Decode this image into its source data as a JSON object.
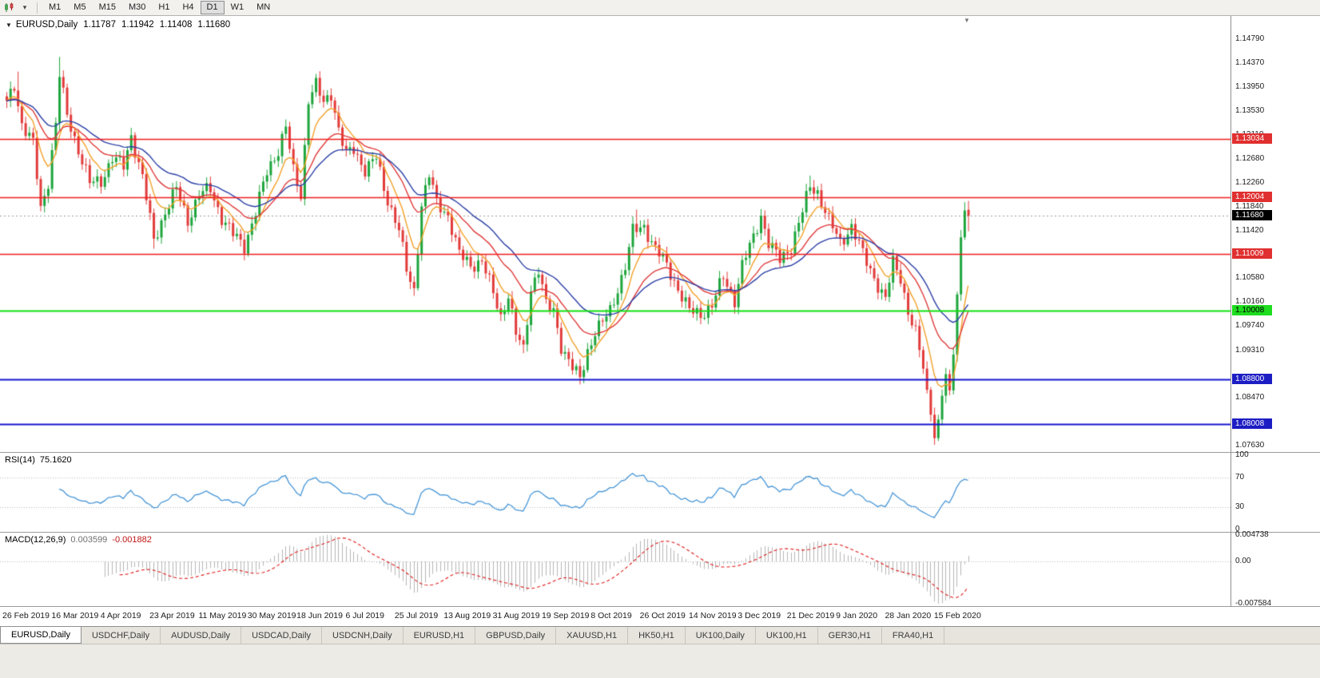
{
  "toolbar": {
    "timeframes": [
      "M1",
      "M5",
      "M15",
      "M30",
      "H1",
      "H4",
      "D1",
      "W1",
      "MN"
    ],
    "active_timeframe": "D1"
  },
  "chart_header": {
    "symbol": "EURUSD,Daily",
    "open": "1.11787",
    "high": "1.11942",
    "low": "1.11408",
    "close": "1.11680"
  },
  "price_scale": {
    "ticks": [
      "1.14790",
      "1.14370",
      "1.13950",
      "1.13530",
      "1.13110",
      "1.12680",
      "1.12260",
      "1.11840",
      "1.11420",
      "1.10580",
      "1.10160",
      "1.09740",
      "1.09310",
      "1.08470",
      "1.07630"
    ],
    "current_price": {
      "label": "1.11680",
      "value": 1.1168,
      "bg": "#000000",
      "fg": "#ffffff"
    },
    "levels": [
      {
        "label": "1.13034",
        "value": 1.13034,
        "line": "#f01d1d",
        "width": 1.6,
        "bg": "#e03030",
        "fg": "#ffffff"
      },
      {
        "label": "1.12004",
        "value": 1.12004,
        "line": "#f01d1d",
        "width": 1.6,
        "bg": "#e03030",
        "fg": "#ffffff"
      },
      {
        "label": "1.11009",
        "value": 1.11009,
        "line": "#f01d1d",
        "width": 1.6,
        "bg": "#e03030",
        "fg": "#ffffff"
      },
      {
        "label": "1.10008",
        "value": 1.10008,
        "line": "#10e010",
        "width": 2,
        "bg": "#1edc1e",
        "fg": "#000000"
      },
      {
        "label": "1.08800",
        "value": 1.088,
        "line": "#1414cf",
        "width": 2,
        "bg": "#1d1dc4",
        "fg": "#ffffff"
      },
      {
        "label": "1.08008",
        "value": 1.08008,
        "line": "#1414cf",
        "width": 2,
        "bg": "#1d1dc4",
        "fg": "#ffffff"
      }
    ]
  },
  "time_axis": {
    "labels": [
      "26 Feb 2019",
      "16 Mar 2019",
      "4 Apr 2019",
      "23 Apr 2019",
      "11 May 2019",
      "30 May 2019",
      "18 Jun 2019",
      "6 Jul 2019",
      "25 Jul 2019",
      "13 Aug 2019",
      "31 Aug 2019",
      "19 Sep 2019",
      "8 Oct 2019",
      "26 Oct 2019",
      "14 Nov 2019",
      "3 Dec 2019",
      "21 Dec 2019",
      "9 Jan 2020",
      "28 Jan 2020",
      "15 Feb 2020"
    ],
    "candles_per_label": 13
  },
  "rsi_panel": {
    "title": "RSI(14)",
    "value": "75.1620",
    "period": 14,
    "scale": [
      {
        "v": 100,
        "label": "100"
      },
      {
        "v": 70,
        "label": "70"
      },
      {
        "v": 30,
        "label": "30"
      },
      {
        "v": 0,
        "label": "0"
      }
    ],
    "guide_levels": [
      70,
      30
    ],
    "line_color": "#4695d6"
  },
  "macd_panel": {
    "title": "MACD(12,26,9)",
    "value": "0.003599",
    "signal_value": "-0.001882",
    "fast": 12,
    "slow": 26,
    "signal": 9,
    "scale": [
      {
        "v": 0.004738,
        "label": "0.004738"
      },
      {
        "v": 0,
        "label": "0.00"
      },
      {
        "v": -0.007584,
        "label": "-0.007584"
      }
    ],
    "hist_color": "#b5b5b5",
    "signal_color": "#e01818"
  },
  "tabs": [
    {
      "label": "EURUSD,Daily",
      "active": true
    },
    {
      "label": "USDCHF,Daily",
      "active": false
    },
    {
      "label": "AUDUSD,Daily",
      "active": false
    },
    {
      "label": "USDCAD,Daily",
      "active": false
    },
    {
      "label": "USDCNH,Daily",
      "active": false
    },
    {
      "label": "EURUSD,H1",
      "active": false
    },
    {
      "label": "GBPUSD,Daily",
      "active": false
    },
    {
      "label": "XAUUSD,H1",
      "active": false
    },
    {
      "label": "HK50,H1",
      "active": false
    },
    {
      "label": "UK100,Daily",
      "active": false
    },
    {
      "label": "UK100,H1",
      "active": false
    },
    {
      "label": "GER30,H1",
      "active": false
    },
    {
      "label": "FRA40,H1",
      "active": false
    }
  ],
  "chart_data": {
    "type": "candlestick",
    "symbol": "EURUSD",
    "timeframe": "Daily",
    "candle_count": 256,
    "y_range": [
      1.0752,
      1.152
    ],
    "x_first": 8,
    "x_step": 4.72,
    "up_color": "#1da53c",
    "down_color": "#e23a3a",
    "ma_lines": [
      {
        "period": 8,
        "color": "#f2a028"
      },
      {
        "period": 20,
        "color": "#e03a3a"
      },
      {
        "period": 34,
        "color": "#2b3fa6"
      }
    ],
    "close_anchors": [
      [
        0,
        1.1365
      ],
      [
        2,
        1.14
      ],
      [
        4,
        1.133
      ],
      [
        7,
        1.1295
      ],
      [
        9,
        1.118
      ],
      [
        11,
        1.123
      ],
      [
        13,
        1.133
      ],
      [
        14,
        1.1415
      ],
      [
        16,
        1.1345
      ],
      [
        19,
        1.1285
      ],
      [
        22,
        1.1225
      ],
      [
        25,
        1.123
      ],
      [
        28,
        1.127
      ],
      [
        31,
        1.1255
      ],
      [
        33,
        1.131
      ],
      [
        36,
        1.1235
      ],
      [
        39,
        1.1125
      ],
      [
        42,
        1.1175
      ],
      [
        45,
        1.1215
      ],
      [
        48,
        1.116
      ],
      [
        51,
        1.1205
      ],
      [
        54,
        1.1215
      ],
      [
        57,
        1.1165
      ],
      [
        60,
        1.1135
      ],
      [
        63,
        1.1115
      ],
      [
        66,
        1.1175
      ],
      [
        69,
        1.1245
      ],
      [
        72,
        1.1285
      ],
      [
        74,
        1.1325
      ],
      [
        76,
        1.1245
      ],
      [
        78,
        1.1205
      ],
      [
        80,
        1.1375
      ],
      [
        82,
        1.1398
      ],
      [
        84,
        1.1365
      ],
      [
        86,
        1.1385
      ],
      [
        88,
        1.132
      ],
      [
        90,
        1.1275
      ],
      [
        92,
        1.1285
      ],
      [
        95,
        1.125
      ],
      [
        98,
        1.127
      ],
      [
        100,
        1.1215
      ],
      [
        102,
        1.118
      ],
      [
        104,
        1.1145
      ],
      [
        106,
        1.107
      ],
      [
        108,
        1.1035
      ],
      [
        110,
        1.119
      ],
      [
        112,
        1.124
      ],
      [
        114,
        1.119
      ],
      [
        117,
        1.117
      ],
      [
        120,
        1.11
      ],
      [
        123,
        1.108
      ],
      [
        126,
        1.109
      ],
      [
        128,
        1.105
      ],
      [
        131,
        1.099
      ],
      [
        133,
        1.103
      ],
      [
        135,
        1.096
      ],
      [
        137,
        1.093
      ],
      [
        139,
        1.104
      ],
      [
        141,
        1.1075
      ],
      [
        143,
        1.101
      ],
      [
        145,
        1.1
      ],
      [
        147,
        1.094
      ],
      [
        150,
        1.09
      ],
      [
        152,
        1.088
      ],
      [
        154,
        1.093
      ],
      [
        156,
        1.0965
      ],
      [
        158,
        1.098
      ],
      [
        160,
        1.1
      ],
      [
        162,
        1.104
      ],
      [
        164,
        1.108
      ],
      [
        166,
        1.114
      ],
      [
        169,
        1.115
      ],
      [
        172,
        1.111
      ],
      [
        175,
        1.108
      ],
      [
        178,
        1.104
      ],
      [
        181,
        1.1
      ],
      [
        184,
        1.0995
      ],
      [
        187,
        1.101
      ],
      [
        190,
        1.106
      ],
      [
        193,
        1.102
      ],
      [
        195,
        1.108
      ],
      [
        198,
        1.113
      ],
      [
        200,
        1.117
      ],
      [
        202,
        1.112
      ],
      [
        205,
        1.109
      ],
      [
        208,
        1.1115
      ],
      [
        211,
        1.1175
      ],
      [
        213,
        1.122
      ],
      [
        215,
        1.121
      ],
      [
        218,
        1.116
      ],
      [
        221,
        1.112
      ],
      [
        224,
        1.115
      ],
      [
        227,
        1.11
      ],
      [
        230,
        1.106
      ],
      [
        233,
        1.102
      ],
      [
        235,
        1.1085
      ],
      [
        237,
        1.106
      ],
      [
        239,
        1.1
      ],
      [
        241,
        1.096
      ],
      [
        243,
        1.09
      ],
      [
        245,
        1.082
      ],
      [
        246,
        1.0778
      ],
      [
        247,
        1.0808
      ],
      [
        248,
        1.0852
      ],
      [
        249,
        1.0888
      ],
      [
        250,
        1.0858
      ],
      [
        251,
        1.0925
      ],
      [
        252,
        1.103
      ],
      [
        253,
        1.113
      ],
      [
        254,
        1.118
      ],
      [
        255,
        1.1168
      ]
    ],
    "overrides": {
      "3": {
        "h": 1.1422
      },
      "9": {
        "l": 1.1176
      },
      "14": {
        "h": 1.1448
      },
      "39": {
        "l": 1.111
      },
      "63": {
        "l": 1.1107
      },
      "82": {
        "h": 1.1412
      },
      "108": {
        "l": 1.1027
      },
      "137": {
        "l": 1.0926
      },
      "152": {
        "l": 1.0879
      },
      "167": {
        "h": 1.1179
      },
      "213": {
        "h": 1.1239
      },
      "246": {
        "l": 1.0775
      },
      "254": {
        "h": 1.1192
      },
      "255": {
        "o": 1.11787,
        "h": 1.11942,
        "l": 1.11408,
        "c": 1.1168
      }
    },
    "last_ohlc": [
      1.11787,
      1.11942,
      1.11408,
      1.1168
    ]
  }
}
